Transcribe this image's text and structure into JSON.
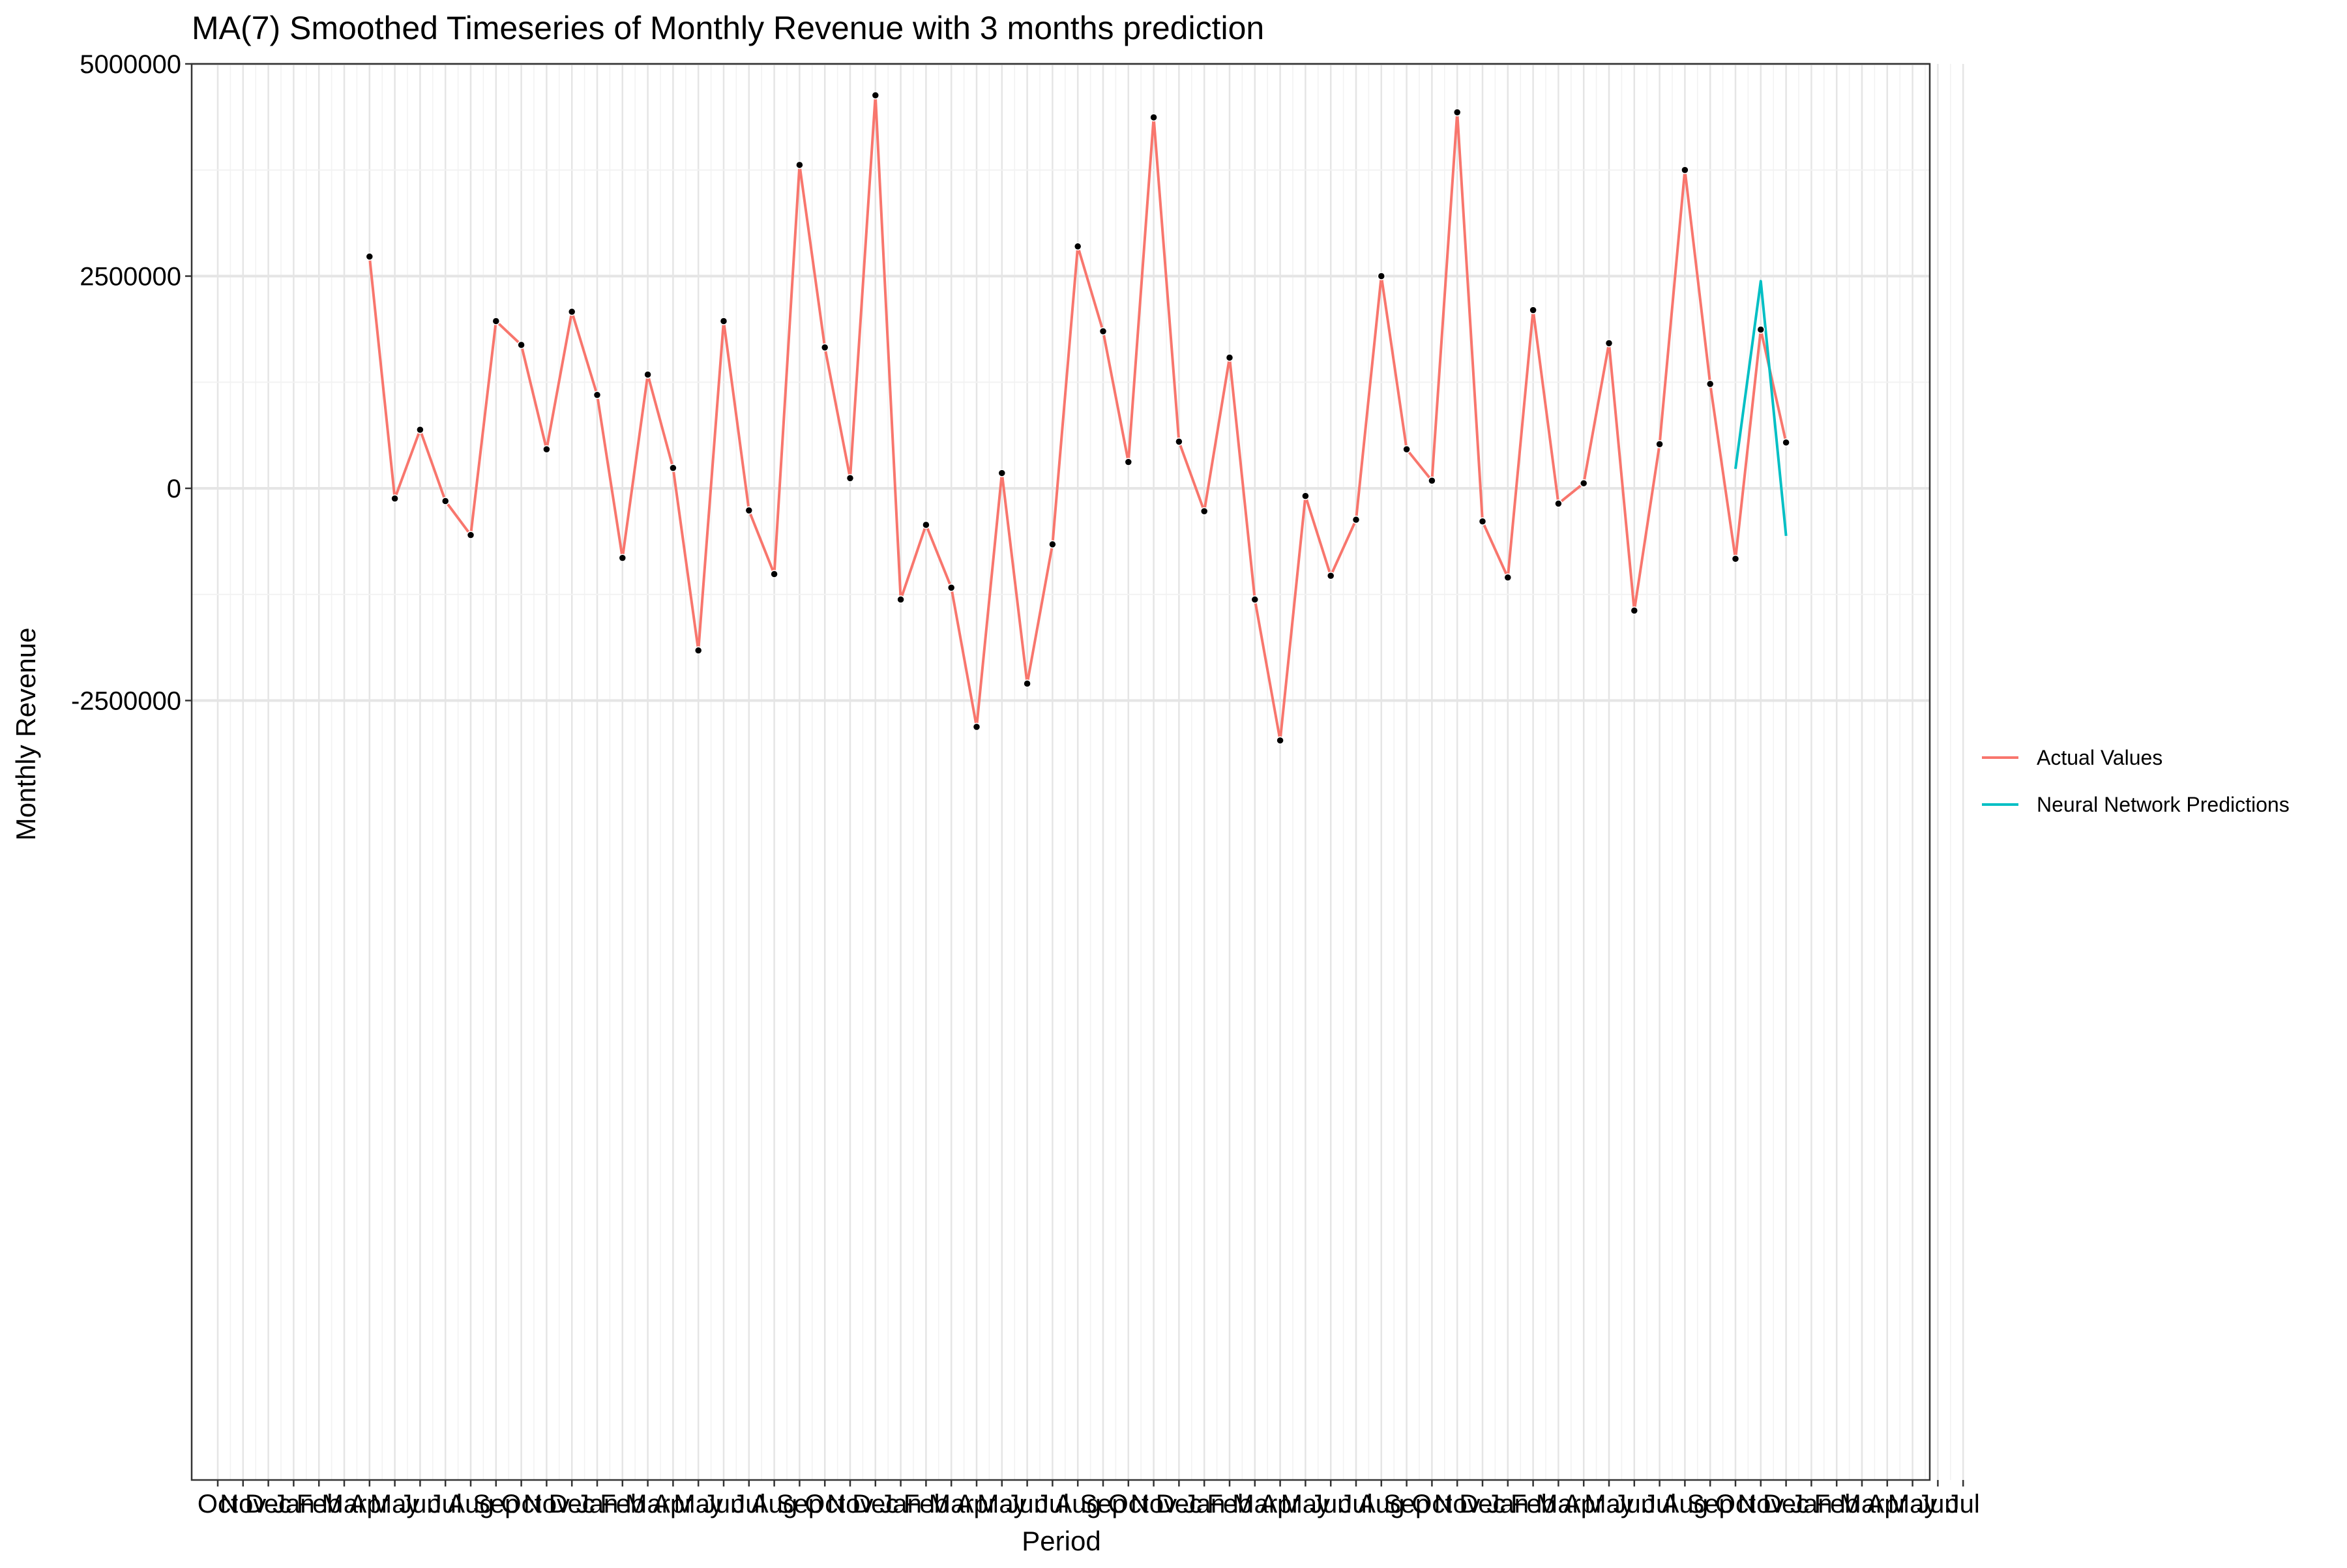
{
  "chart_data": {
    "type": "line",
    "title": "MA(7) Smoothed Timeseries of Monthly Revenue with 3 months prediction",
    "xlabel": "Period",
    "ylabel": "Monthly Revenue",
    "ylim": [
      -3400000,
      5000000
    ],
    "y_ticks": [
      5000000,
      2500000,
      0,
      -2500000
    ],
    "y_tick_labels": [
      "5000000",
      "2500000",
      "0",
      "-2500000"
    ],
    "x_tick_labels": [
      "Oct",
      "Nov",
      "Dec",
      "Jan",
      "Feb",
      "Mar",
      "Apr",
      "May",
      "Jun",
      "Jul",
      "Aug",
      "Sep",
      "Oct",
      "Nov",
      "Dec",
      "Jan",
      "Feb",
      "Mar",
      "Apr",
      "May",
      "Jun",
      "Jul",
      "Aug",
      "Sep",
      "Oct",
      "Nov",
      "Dec",
      "Jan",
      "Feb",
      "Mar",
      "Apr",
      "May",
      "Jun",
      "Jul",
      "Aug",
      "Sep",
      "Oct",
      "Nov",
      "Dec",
      "Jan",
      "Feb",
      "Mar",
      "Apr",
      "May",
      "Jun",
      "Jul",
      "Aug",
      "Sep",
      "Oct",
      "Nov",
      "Dec",
      "Jan",
      "Feb",
      "Mar",
      "Apr",
      "May",
      "Jun",
      "Jul",
      "Aug",
      "Sep",
      "Oct",
      "Nov",
      "Dec",
      "Jan",
      "Feb",
      "Mar",
      "Apr",
      "May",
      "Jun",
      "Jul"
    ],
    "grid": true,
    "legend_position": "right",
    "series": [
      {
        "name": "Actual Values",
        "color": "#F8766D",
        "show_points": true,
        "start_index": 6,
        "values": [
          2730000,
          -120000,
          690000,
          -150000,
          -550000,
          1970000,
          1690000,
          460000,
          2080000,
          1100000,
          -820000,
          1340000,
          240000,
          -1910000,
          1970000,
          -260000,
          -1010000,
          3810000,
          1660000,
          120000,
          4630000,
          -1310000,
          -430000,
          -1170000,
          -2810000,
          180000,
          -2300000,
          -660000,
          2850000,
          1850000,
          310000,
          4370000,
          550000,
          -270000,
          1540000,
          -1310000,
          -2970000,
          -90000,
          -1030000,
          -370000,
          2500000,
          460000,
          90000,
          4430000,
          -390000,
          -1050000,
          2100000,
          -180000,
          60000,
          1710000,
          -1440000,
          520000,
          3750000,
          1230000,
          -830000,
          1870000,
          540000
        ]
      },
      {
        "name": "Neural Network Predictions",
        "color": "#00BFC4",
        "show_points": false,
        "start_index": 60,
        "values": [
          230000,
          2440000,
          -560000
        ]
      }
    ]
  }
}
